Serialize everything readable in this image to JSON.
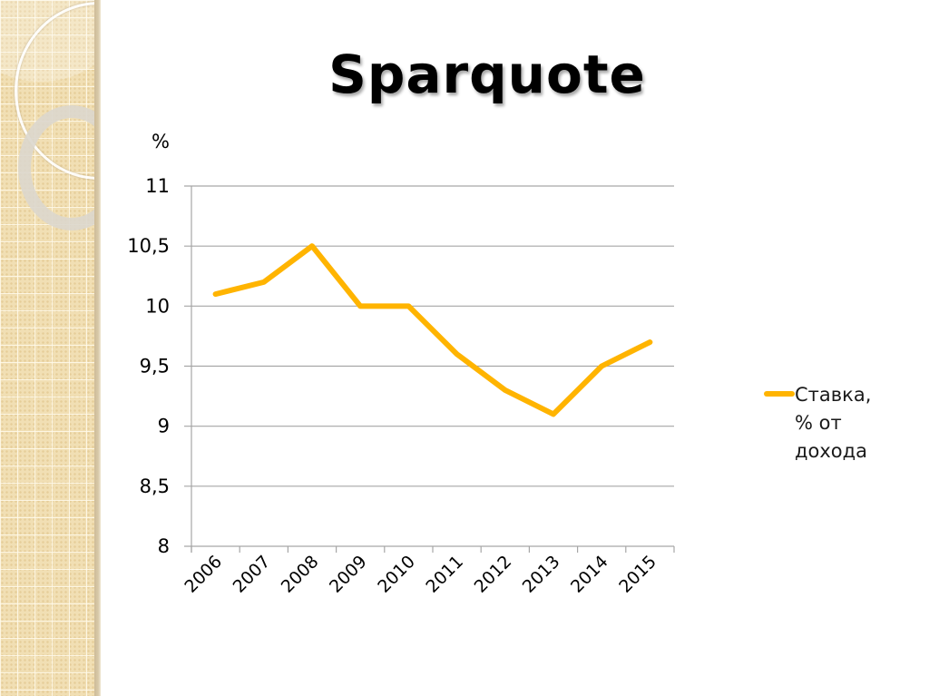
{
  "slide": {
    "title": "Sparquote"
  },
  "chart_data": {
    "type": "line",
    "title": "Sparquote",
    "xlabel": "",
    "ylabel": "%",
    "categories": [
      "2006",
      "2007",
      "2008",
      "2009",
      "2010",
      "2011",
      "2012",
      "2013",
      "2014",
      "2015"
    ],
    "series": [
      {
        "name": "Ставка, % от дохода",
        "color": "#FFB400",
        "values": [
          10.1,
          10.2,
          10.5,
          10.0,
          10.0,
          9.6,
          9.3,
          9.1,
          9.5,
          9.7
        ]
      }
    ],
    "ylim": [
      8,
      11
    ],
    "yticks": [
      8,
      8.5,
      9,
      9.5,
      10,
      10.5,
      11
    ],
    "ytick_labels": [
      "8",
      "8,5",
      "9",
      "9,5",
      "10",
      "10,5",
      "11"
    ],
    "grid": true,
    "legend_position": "right"
  },
  "legend": {
    "line1": "Ставка,",
    "line2": "% от",
    "line3": "дохода"
  },
  "colors": {
    "series": "#FFB400",
    "grid": "#a6a6a6",
    "panel": "#f1dfb4"
  }
}
